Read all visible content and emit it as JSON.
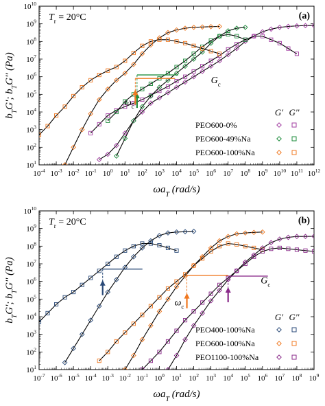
{
  "chart_data": [
    {
      "type": "scatter",
      "panel_label": "(a)",
      "temp_label": "T",
      "temp_sub": "r",
      "temp_value": " = 20°C",
      "xlabel_parts": [
        "ωa",
        "T",
        " (rad/s)"
      ],
      "ylabel_parts": [
        "b",
        "T",
        "G'; b",
        "T",
        "G'' (Pa)"
      ],
      "xscale": "log",
      "yscale": "log",
      "xlim_exp": [
        -4,
        12
      ],
      "ylim_exp": [
        1,
        10
      ],
      "x_ticks": [
        "10-4",
        "10-3",
        "10-2",
        "10-1",
        "100",
        "101",
        "102",
        "103",
        "104",
        "105",
        "106",
        "107",
        "108",
        "109",
        "1010",
        "1011",
        "1012"
      ],
      "y_ticks": [
        "101",
        "102",
        "103",
        "104",
        "105",
        "106",
        "107",
        "108",
        "109",
        "1010"
      ],
      "legend_header": [
        "G'",
        "G''"
      ],
      "series": [
        {
          "name": "PEO600-0%",
          "color": "#a03ca0",
          "gp_x": [
            -0.5,
            0,
            0.5,
            1,
            1.5,
            2,
            2.5,
            3,
            3.5,
            4,
            4.5,
            5,
            5.5,
            6,
            6.5,
            7,
            7.5,
            8,
            8.5,
            9,
            9.5,
            10,
            10.5,
            11,
            11.5,
            12
          ],
          "gp_y": [
            1.3,
            1.6,
            2.1,
            2.8,
            3.5,
            4.0,
            4.5,
            4.8,
            5.1,
            5.4,
            5.7,
            6.0,
            6.3,
            6.6,
            6.9,
            7.25,
            7.6,
            8.0,
            8.3,
            8.55,
            8.7,
            8.8,
            8.85,
            8.88,
            8.9,
            8.9
          ],
          "gpp_x": [
            -1,
            -0.5,
            0,
            0.5,
            1,
            1.5,
            2,
            2.5,
            3,
            3.5,
            4,
            4.5,
            5,
            5.5,
            6,
            6.5,
            7,
            7.5,
            8,
            8.5,
            9,
            9.5,
            10,
            10.5,
            11
          ],
          "gpp_y": [
            2.8,
            3.3,
            3.8,
            4.1,
            4.3,
            4.5,
            4.7,
            4.95,
            5.2,
            5.45,
            5.75,
            6.0,
            6.3,
            6.6,
            6.9,
            7.2,
            7.55,
            7.85,
            8.1,
            8.3,
            8.3,
            8.1,
            7.9,
            7.6,
            7.3
          ]
        },
        {
          "name": "PEO600-49%Na",
          "color": "#1e8c3c",
          "gp_x": [
            0.5,
            1,
            1.5,
            2,
            2.5,
            3,
            3.5,
            4,
            4.5,
            5,
            5.5,
            6,
            6.5,
            7,
            7.5,
            8
          ],
          "gp_y": [
            1.5,
            2.5,
            3.5,
            4.3,
            4.9,
            5.4,
            5.8,
            6.2,
            6.6,
            7.0,
            7.4,
            7.9,
            8.3,
            8.6,
            8.75,
            8.8
          ],
          "gpp_x": [
            0,
            0.5,
            1,
            1.5,
            2,
            2.5,
            3,
            3.5,
            4,
            4.5,
            5,
            5.5,
            6,
            6.5,
            7,
            7.5,
            8
          ],
          "gpp_y": [
            3.5,
            4.0,
            4.6,
            5.0,
            5.3,
            5.6,
            5.9,
            6.2,
            6.55,
            6.9,
            7.3,
            7.7,
            8.05,
            8.3,
            8.4,
            8.3,
            8.1
          ]
        },
        {
          "name": "PEO600-100%Na",
          "color": "#f07820",
          "gp_x": [
            -2.5,
            -2,
            -1.5,
            -1,
            -0.5,
            0,
            0.5,
            1,
            1.5,
            2,
            2.5,
            3,
            3.5,
            4,
            4.5,
            5,
            5.5,
            6,
            6.5
          ],
          "gp_y": [
            1.0,
            2.0,
            3.0,
            3.9,
            4.7,
            5.3,
            5.8,
            6.2,
            6.7,
            7.3,
            7.8,
            8.2,
            8.5,
            8.65,
            8.75,
            8.8,
            8.82,
            8.84,
            8.85
          ],
          "gpp_x": [
            -4,
            -3.5,
            -3,
            -2.5,
            -2,
            -1.5,
            -1,
            -0.5,
            0,
            0.5,
            1,
            1.5,
            2,
            2.5,
            3,
            3.5,
            4,
            4.5,
            5,
            5.5,
            6,
            6.5
          ],
          "gpp_y": [
            2.7,
            3.2,
            3.8,
            4.3,
            4.9,
            5.4,
            5.8,
            6.1,
            6.35,
            6.55,
            6.9,
            7.35,
            7.75,
            8.0,
            8.1,
            8.1,
            8.0,
            7.9,
            7.75,
            7.6,
            7.45,
            7.3
          ]
        }
      ],
      "annotations": {
        "omega_c": "ω",
        "omega_c_sub": "c",
        "G_c": "G",
        "G_c_sub": "c"
      }
    },
    {
      "type": "scatter",
      "panel_label": "(b)",
      "temp_label": "T",
      "temp_sub": "r",
      "temp_value": " = 20°C",
      "xlabel_parts": [
        "ωa",
        "T",
        " (rad/s)"
      ],
      "ylabel_parts": [
        "b",
        "T",
        "G'; b",
        "T",
        "G'' (Pa)"
      ],
      "xscale": "log",
      "yscale": "log",
      "xlim_exp": [
        -7,
        9
      ],
      "ylim_exp": [
        1,
        10
      ],
      "x_ticks": [
        "10-7",
        "10-6",
        "10-5",
        "10-4",
        "10-3",
        "10-2",
        "10-1",
        "100",
        "101",
        "102",
        "103",
        "104",
        "105",
        "106",
        "107",
        "108",
        "109"
      ],
      "y_ticks": [
        "101",
        "102",
        "103",
        "104",
        "105",
        "106",
        "107",
        "108",
        "109",
        "1010"
      ],
      "legend_header": [
        "G'",
        "G''"
      ],
      "series": [
        {
          "name": "PEO400-100%Na",
          "color": "#2a4a78",
          "gp_x": [
            -5.5,
            -5,
            -4.5,
            -4,
            -3.5,
            -3,
            -2.5,
            -2,
            -1.5,
            -1,
            -0.5,
            0,
            0.5,
            1,
            1.5,
            2
          ],
          "gp_y": [
            1.4,
            2.2,
            3.0,
            3.8,
            4.6,
            5.4,
            6.1,
            6.8,
            7.4,
            7.9,
            8.3,
            8.6,
            8.75,
            8.8,
            8.82,
            8.84
          ],
          "gpp_x": [
            -7,
            -6.5,
            -6,
            -5.5,
            -5,
            -4.5,
            -4,
            -3.5,
            -3,
            -2.5,
            -2,
            -1.5,
            -1,
            -0.5,
            0,
            0.5,
            1
          ],
          "gpp_y": [
            3.7,
            4.2,
            4.7,
            5.1,
            5.4,
            5.8,
            6.2,
            6.6,
            7.0,
            7.4,
            7.75,
            8.0,
            8.15,
            8.15,
            8.05,
            7.9,
            7.75
          ]
        },
        {
          "name": "PEO600-100%Na",
          "color": "#f07820",
          "gp_x": [
            -2,
            -1.5,
            -1,
            -0.5,
            0,
            0.5,
            1,
            1.5,
            2,
            2.5,
            3,
            3.5,
            4,
            4.5,
            5,
            5.5,
            6
          ],
          "gp_y": [
            1.0,
            1.8,
            2.7,
            3.5,
            4.3,
            5.0,
            5.7,
            6.3,
            6.9,
            7.4,
            7.9,
            8.3,
            8.55,
            8.7,
            8.75,
            8.78,
            8.8
          ],
          "gpp_x": [
            -3.5,
            -3,
            -2.5,
            -2,
            -1.5,
            -1,
            -0.5,
            0,
            0.5,
            1,
            1.5,
            2,
            2.5,
            3,
            3.5,
            4,
            4.5,
            5,
            5.5,
            6
          ],
          "gpp_y": [
            1.5,
            2.0,
            2.6,
            3.1,
            3.6,
            4.1,
            4.6,
            5.1,
            5.6,
            6.0,
            6.4,
            6.9,
            7.3,
            7.7,
            8.0,
            8.15,
            8.1,
            8.0,
            7.9,
            7.8
          ]
        },
        {
          "name": "PEO1100-100%Na",
          "color": "#8a2a8a",
          "gp_x": [
            0.5,
            1,
            1.5,
            2,
            2.5,
            3,
            3.5,
            4,
            4.5,
            5,
            5.5,
            6,
            6.5,
            7,
            7.5,
            8,
            8.5,
            9
          ],
          "gp_y": [
            1.0,
            1.8,
            2.7,
            3.5,
            4.2,
            4.9,
            5.5,
            6.1,
            6.6,
            7.1,
            7.5,
            7.9,
            8.2,
            8.4,
            8.5,
            8.55,
            8.55,
            8.56
          ],
          "gpp_x": [
            -1,
            -0.5,
            0,
            0.5,
            1,
            1.5,
            2,
            2.5,
            3,
            3.5,
            4,
            4.5,
            5,
            5.5,
            6,
            6.5,
            7,
            7.5,
            8,
            8.5,
            9
          ],
          "gpp_y": [
            1.0,
            1.5,
            2.0,
            2.6,
            3.2,
            3.8,
            4.3,
            4.8,
            5.3,
            5.8,
            6.2,
            6.6,
            7.0,
            7.4,
            7.7,
            7.85,
            7.9,
            7.85,
            7.8,
            7.75,
            7.7
          ]
        }
      ],
      "annotations": {
        "omega_c": "ω",
        "omega_c_sub": "c",
        "G_c": "G",
        "G_c_sub": "c"
      }
    }
  ]
}
